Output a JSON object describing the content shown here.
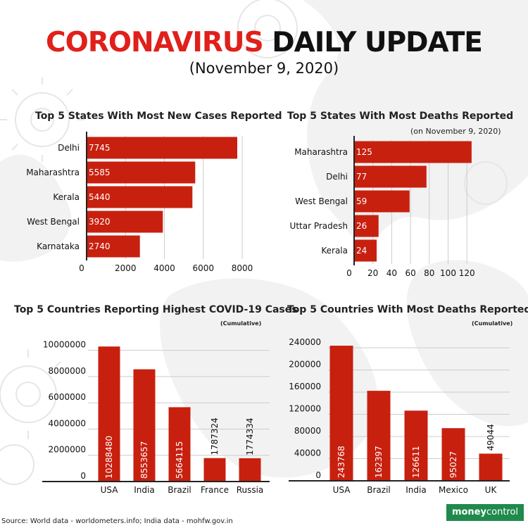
{
  "header": {
    "title_red": "CORONAVIRUS",
    "title_black": "DAILY UPDATE",
    "subtitle": "(November 9, 2020)"
  },
  "panels": {
    "states_cases": {
      "title": "Top 5 States With Most New Cases Reported"
    },
    "states_deaths": {
      "title": "Top 5 States With Most Deaths Reported",
      "note": "(on November 9, 2020)"
    },
    "countries_cases": {
      "title": "Top 5 Countries Reporting Highest COVID-19 Cases",
      "note": "(Cumulative)"
    },
    "countries_deaths": {
      "title": "Top 5 Countries With Most Deaths Reported",
      "note": "(Cumulative)"
    }
  },
  "footer": {
    "source": "Source: World data - worldometers.info; India data - mohfw.gov.in",
    "logo_part1": "money",
    "logo_part2": "control"
  },
  "colors": {
    "accent": "#cc1f16",
    "title_red": "#e0201b",
    "bar": "#c8200f",
    "text": "#111111",
    "grid": "#cccccc",
    "logo_bg": "#1f8a4c"
  },
  "chart_data": [
    {
      "type": "bar",
      "orientation": "horizontal",
      "title": "Top 5 States With Most New Cases Reported",
      "categories": [
        "Delhi",
        "Maharashtra",
        "Kerala",
        "West Bengal",
        "Karnataka"
      ],
      "values": [
        7745,
        5585,
        5440,
        3920,
        2740
      ],
      "data_labels": [
        "7745",
        "5585",
        "5440",
        "3920",
        "2740"
      ],
      "ticks": [
        "0",
        "2000",
        "4000",
        "6000",
        "8000"
      ],
      "xlim": [
        0,
        8000
      ],
      "grid": true
    },
    {
      "type": "bar",
      "orientation": "horizontal",
      "title": "Top 5 States With Most Deaths Reported",
      "categories": [
        "Maharashtra",
        "Delhi",
        "West Bengal",
        "Uttar Pradesh",
        "Kerala"
      ],
      "values": [
        125,
        77,
        59,
        26,
        24
      ],
      "data_labels": [
        "125",
        "77",
        "59",
        "26",
        "24"
      ],
      "ticks": [
        "0",
        "20",
        "40",
        "60",
        "80",
        "100",
        "120"
      ],
      "xlim": [
        0,
        120
      ],
      "grid": true
    },
    {
      "type": "bar",
      "orientation": "vertical",
      "title": "Top 5 Countries Reporting Highest COVID-19 Cases",
      "categories": [
        "USA",
        "India",
        "Brazil",
        "France",
        "Russia"
      ],
      "values": [
        10288480,
        8553657,
        5664115,
        1787324,
        1774334
      ],
      "data_labels": [
        "10288480",
        "8553657",
        "5664115",
        "1787324",
        "1774334"
      ],
      "ticks": [
        "0",
        "2000000",
        "4000000",
        "6000000",
        "8000000",
        "10000000"
      ],
      "ylim": [
        0,
        10000000
      ],
      "grid": true
    },
    {
      "type": "bar",
      "orientation": "vertical",
      "title": "Top 5 Countries With Most Deaths Reported",
      "categories": [
        "USA",
        "Brazil",
        "India",
        "Mexico",
        "UK"
      ],
      "values": [
        243768,
        162397,
        126611,
        95027,
        49044
      ],
      "data_labels": [
        "243768",
        "162397",
        "126611",
        "95027",
        "49044"
      ],
      "ticks": [
        "0",
        "40000",
        "80000",
        "120000",
        "160000",
        "200000",
        "240000"
      ],
      "ylim": [
        0,
        240000
      ],
      "grid": true
    }
  ]
}
